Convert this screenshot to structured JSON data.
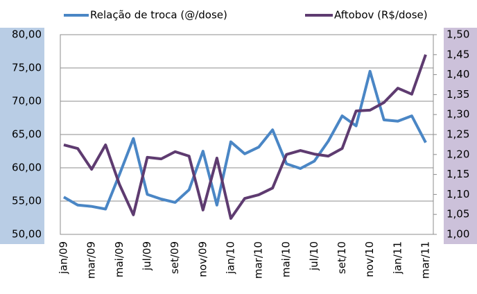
{
  "chart_data": {
    "type": "line",
    "categories": [
      "jan/09",
      null,
      "mar/09",
      null,
      "mai/09",
      null,
      "jul/09",
      null,
      "set/09",
      null,
      "nov/09",
      null,
      "jan/10",
      null,
      "mar/10",
      null,
      "mai/10",
      null,
      "jul/10",
      null,
      "set/10",
      null,
      "nov/10",
      null,
      "jan/11",
      null,
      "mar/11"
    ],
    "series": [
      {
        "name": "Relação de troca (@/dose)",
        "color": "#4a86c5",
        "values": [
          55.6,
          54.4,
          54.2,
          53.8,
          59.0,
          64.4,
          56.0,
          55.3,
          54.8,
          56.7,
          62.5,
          54.4,
          63.9,
          62.1,
          63.1,
          65.7,
          60.6,
          59.9,
          61.0,
          64.0,
          67.8,
          66.3,
          74.5,
          67.2,
          67.0,
          67.8,
          63.8
        ]
      },
      {
        "name": "Aftobov (R$/dose)",
        "color": "#5e3b70",
        "axis": "y2",
        "values": [
          1.224,
          1.215,
          1.163,
          1.224,
          1.125,
          1.049,
          1.193,
          1.189,
          1.207,
          1.196,
          1.061,
          1.191,
          1.04,
          1.09,
          1.099,
          1.116,
          1.2,
          1.21,
          1.201,
          1.196,
          1.215,
          1.309,
          1.311,
          1.33,
          1.366,
          1.351,
          1.45
        ]
      }
    ],
    "ylim": [
      50,
      80
    ],
    "yticks": [
      {
        "value": 50,
        "label": "50,00"
      },
      {
        "value": 55,
        "label": "55,00"
      },
      {
        "value": 60,
        "label": "60,00"
      },
      {
        "value": 65,
        "label": "65,00"
      },
      {
        "value": 70,
        "label": "70,00"
      },
      {
        "value": 75,
        "label": "75,00"
      },
      {
        "value": 80,
        "label": "80,00"
      }
    ],
    "y2lim": [
      1.0,
      1.5
    ],
    "y2ticks": [
      {
        "value": 1.0,
        "label": "1,00"
      },
      {
        "value": 1.05,
        "label": "1,05"
      },
      {
        "value": 1.1,
        "label": "1,10"
      },
      {
        "value": 1.15,
        "label": "1,15"
      },
      {
        "value": 1.2,
        "label": "1,20"
      },
      {
        "value": 1.25,
        "label": "1,25"
      },
      {
        "value": 1.3,
        "label": "1,30"
      },
      {
        "value": 1.35,
        "label": "1,35"
      },
      {
        "value": 1.4,
        "label": "1,40"
      },
      {
        "value": 1.45,
        "label": "1,45"
      },
      {
        "value": 1.5,
        "label": "1,50"
      }
    ],
    "grid": true,
    "legend": "top"
  }
}
